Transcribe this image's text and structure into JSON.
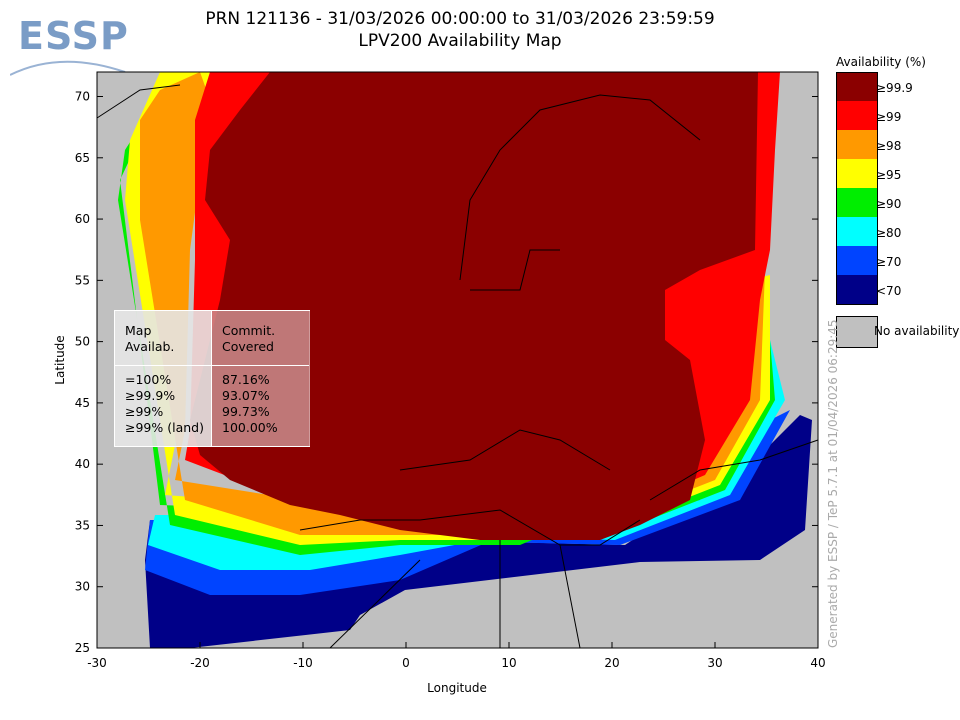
{
  "header": {
    "logo": "ESSP",
    "title_line1": "PRN 121136 - 31/03/2026 00:00:00 to 31/03/2026 23:59:59",
    "title_line2": "LPV200 Availability Map"
  },
  "axes": {
    "xlabel": "Longitude",
    "ylabel": "Latitude",
    "x_ticks": [
      "-30",
      "-20",
      "-10",
      "0",
      "10",
      "20",
      "30",
      "40"
    ],
    "y_ticks": [
      "70",
      "65",
      "60",
      "55",
      "50",
      "45",
      "40",
      "35",
      "30",
      "25"
    ],
    "xlim": [
      -30,
      40
    ],
    "ylim": [
      25,
      72
    ]
  },
  "legend": {
    "title": "Availability (%)",
    "items": [
      {
        "label": "≥99.9",
        "color": "#8b0000"
      },
      {
        "label": "≥99",
        "color": "#ff0000"
      },
      {
        "label": "≥98",
        "color": "#ff9900"
      },
      {
        "label": "≥95",
        "color": "#ffff00"
      },
      {
        "label": "≥90",
        "color": "#00ee00"
      },
      {
        "label": "≥80",
        "color": "#00ffff"
      },
      {
        "label": "≥70",
        "color": "#0044ff"
      },
      {
        "label": "<70",
        "color": "#000088"
      }
    ],
    "no_availability": {
      "label": "No availability",
      "color": "#c0c0c0"
    }
  },
  "stats": {
    "col1_header_1": "Map",
    "col1_header_2": "Availab.",
    "col2_header_1": "Commit.",
    "col2_header_2": "Covered",
    "rows": [
      {
        "map": "=100%",
        "covered": "87.16%"
      },
      {
        "map": "≥99.9%",
        "covered": "93.07%"
      },
      {
        "map": "≥99%",
        "covered": "99.73%"
      },
      {
        "map": "≥99% (land)",
        "covered": "100.00%"
      }
    ]
  },
  "credit": "Generated by ESSP / TeP 5.7.1 at 01/04/2026 06:29:45"
}
